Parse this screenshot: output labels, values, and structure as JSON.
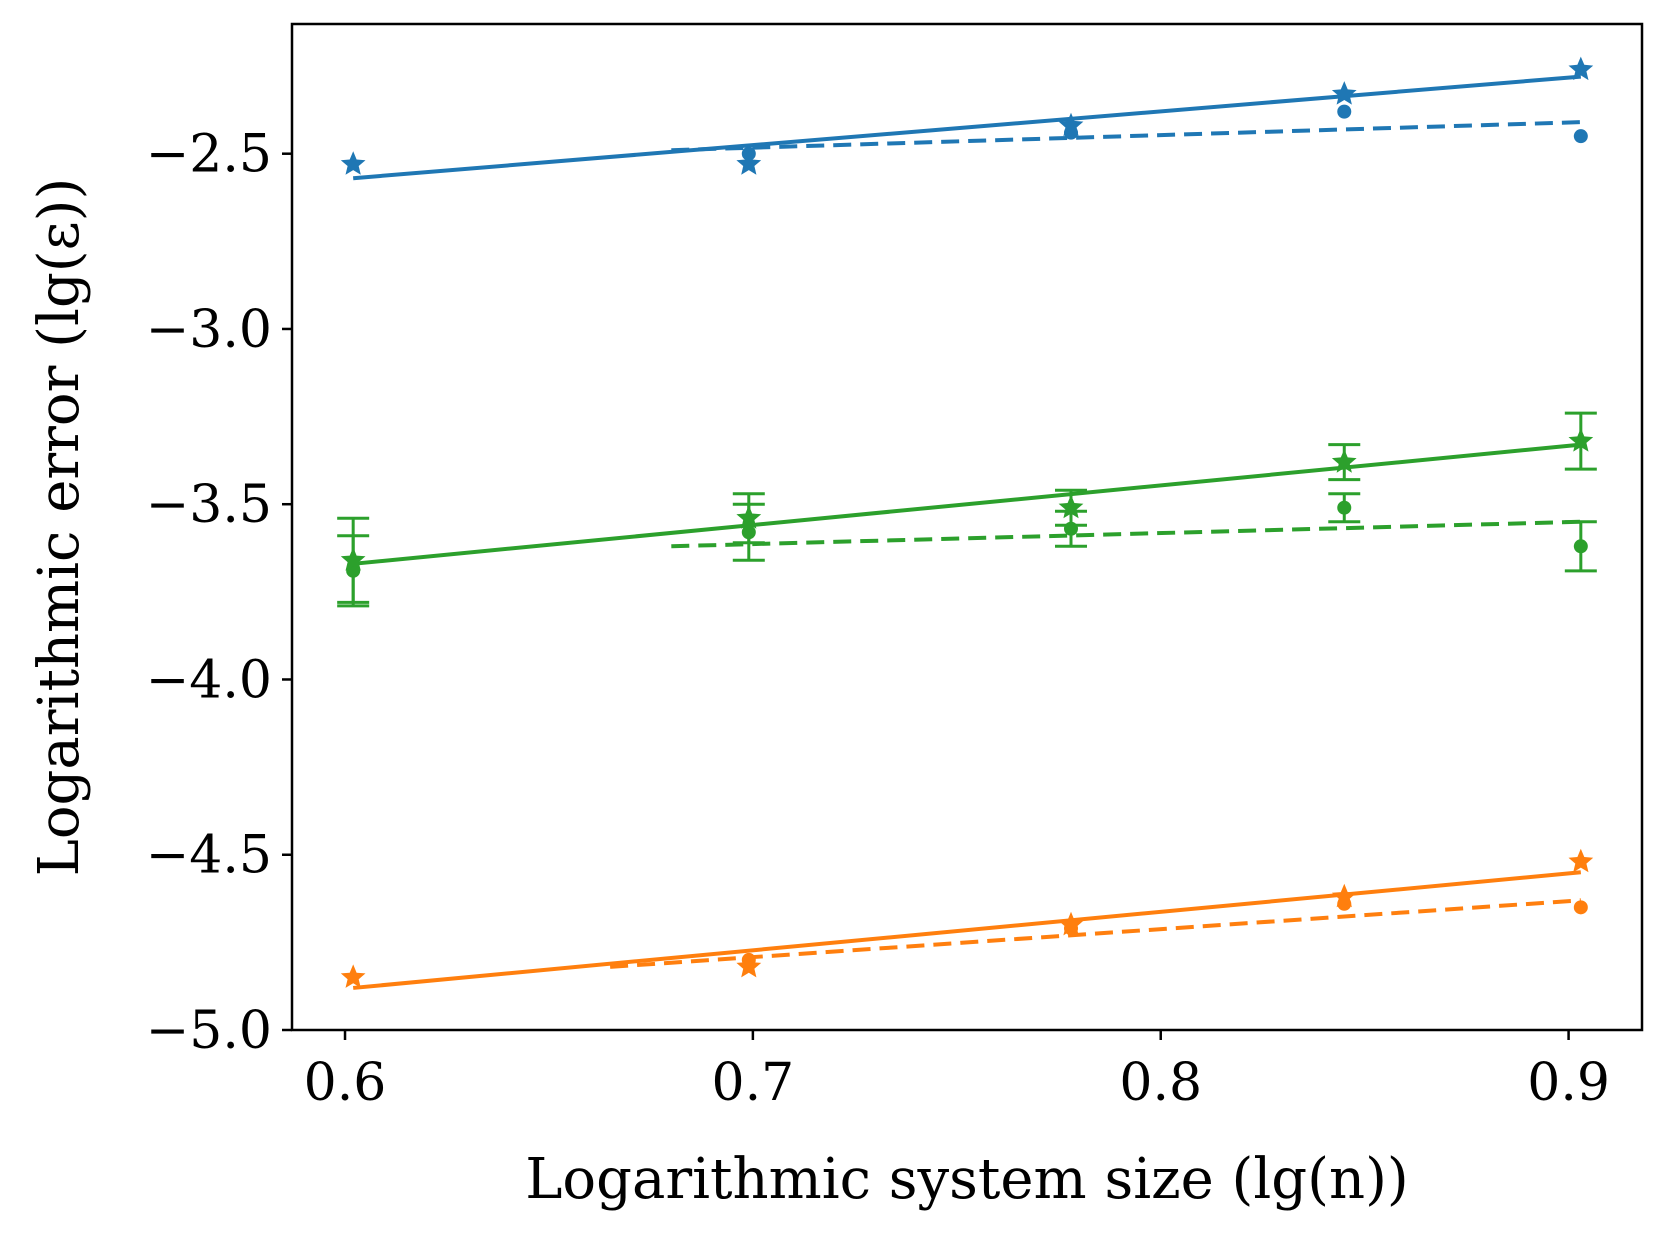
{
  "chart_data": {
    "type": "scatter",
    "title": "",
    "xlabel": "Logarithmic system size (lg(n))",
    "ylabel": "Logarithmic error (lg(ε))",
    "xlim": [
      0.587,
      0.918
    ],
    "ylim": [
      -5.0,
      -2.13
    ],
    "xticks": [
      0.6,
      0.7,
      0.8,
      0.9
    ],
    "xtick_labels": [
      "0.6",
      "0.7",
      "0.8",
      "0.9"
    ],
    "yticks": [
      -2.5,
      -3.0,
      -3.5,
      -4.0,
      -4.5,
      -5.0
    ],
    "ytick_labels": [
      "−2.5",
      "−3.0",
      "−3.5",
      "−4.0",
      "−4.5",
      "−5.0"
    ],
    "grid": false,
    "legend": "none",
    "series": [
      {
        "name": "blue",
        "color": "#1f77b4",
        "star_points": {
          "x": [
            0.602,
            0.699,
            0.778,
            0.845,
            0.903
          ],
          "y": [
            -2.53,
            -2.53,
            -2.42,
            -2.33,
            -2.26
          ]
        },
        "dot_points": {
          "x": [
            0.699,
            0.778,
            0.845,
            0.903
          ],
          "y": [
            -2.5,
            -2.44,
            -2.38,
            -2.45
          ]
        },
        "solid_fit": {
          "x": [
            0.602,
            0.903
          ],
          "y": [
            -2.57,
            -2.28
          ]
        },
        "dashed_fit": {
          "x": [
            0.68,
            0.903
          ],
          "y": [
            -2.49,
            -2.41
          ]
        }
      },
      {
        "name": "green",
        "color": "#2ca02c",
        "star_points": {
          "x": [
            0.602,
            0.699,
            0.778,
            0.845,
            0.903
          ],
          "y": [
            -3.66,
            -3.54,
            -3.51,
            -3.38,
            -3.32
          ],
          "err": [
            0.12,
            0.07,
            0.05,
            0.05,
            0.08
          ]
        },
        "dot_points": {
          "x": [
            0.602,
            0.699,
            0.778,
            0.845,
            0.903
          ],
          "y": [
            -3.69,
            -3.58,
            -3.57,
            -3.51,
            -3.62
          ],
          "err": [
            0.1,
            0.08,
            0.05,
            0.04,
            0.07
          ]
        },
        "solid_fit": {
          "x": [
            0.602,
            0.903
          ],
          "y": [
            -3.67,
            -3.33
          ]
        },
        "dashed_fit": {
          "x": [
            0.68,
            0.903
          ],
          "y": [
            -3.62,
            -3.55
          ]
        }
      },
      {
        "name": "orange",
        "color": "#ff7f0e",
        "star_points": {
          "x": [
            0.602,
            0.699,
            0.778,
            0.845,
            0.903
          ],
          "y": [
            -4.85,
            -4.82,
            -4.7,
            -4.62,
            -4.52
          ]
        },
        "dot_points": {
          "x": [
            0.699,
            0.778,
            0.845,
            0.903
          ],
          "y": [
            -4.8,
            -4.71,
            -4.64,
            -4.65
          ]
        },
        "solid_fit": {
          "x": [
            0.602,
            0.903
          ],
          "y": [
            -4.88,
            -4.55
          ]
        },
        "dashed_fit": {
          "x": [
            0.665,
            0.903
          ],
          "y": [
            -4.82,
            -4.63
          ]
        }
      }
    ]
  }
}
